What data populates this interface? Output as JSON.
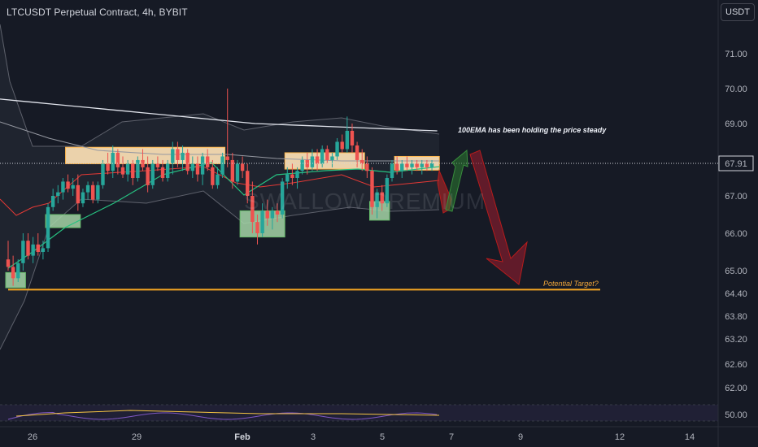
{
  "header": {
    "title": "LTCUSDT Perpetual Contract, 4h, BYBIT",
    "currency": "USDT"
  },
  "watermark": "SWALLOW PREMIUM",
  "annotations": {
    "ema_note": "100EMA has been holding the price steady",
    "target_note": "Potential Target?"
  },
  "colors": {
    "up": "#26a69a",
    "down": "#ef5350",
    "ema_fast": "#26c281",
    "ema_slow": "#e53935",
    "ema_100": "#e0e3eb",
    "resistance_box": "#fde2b6",
    "support_box": "#a5d6a7",
    "target_line": "#f5a623",
    "arrow_down": "#8b1c2c",
    "arrow_up": "#2e7d32",
    "rsi": "#7e57c2"
  },
  "chart_data": {
    "type": "candlestick",
    "symbol": "LTCUSDT",
    "interval": "4h",
    "exchange": "BYBIT",
    "price_axis": {
      "ticks": [
        "71.00",
        "70.00",
        "69.00",
        "67.00",
        "66.00",
        "65.00",
        "64.40",
        "63.80",
        "63.20",
        "62.60",
        "62.00"
      ],
      "last_price": "67.91"
    },
    "rsi_axis": {
      "ticks": [
        "50.00"
      ]
    },
    "time_axis": {
      "ticks": [
        "26",
        "29",
        "Feb",
        "3",
        "5",
        "7",
        "9",
        "12",
        "14"
      ],
      "bold": [
        "Feb"
      ]
    },
    "target_price": 64.5,
    "candles": [
      [
        65.3,
        65.8,
        65.0,
        65.1
      ],
      [
        65.1,
        65.4,
        64.6,
        64.8
      ],
      [
        64.8,
        65.3,
        64.7,
        65.2
      ],
      [
        65.2,
        66.0,
        65.0,
        65.8
      ],
      [
        65.8,
        66.0,
        65.3,
        65.4
      ],
      [
        65.4,
        65.9,
        65.2,
        65.7
      ],
      [
        65.7,
        66.0,
        65.4,
        65.5
      ],
      [
        65.5,
        65.8,
        65.3,
        65.6
      ],
      [
        65.6,
        66.8,
        65.5,
        66.7
      ],
      [
        66.7,
        67.2,
        66.6,
        67.0
      ],
      [
        67.0,
        67.3,
        66.8,
        67.1
      ],
      [
        67.1,
        67.5,
        66.9,
        67.4
      ],
      [
        67.4,
        67.6,
        67.1,
        67.2
      ],
      [
        67.2,
        67.5,
        67.0,
        67.3
      ],
      [
        67.3,
        67.6,
        66.6,
        66.8
      ],
      [
        66.8,
        67.2,
        66.7,
        67.1
      ],
      [
        67.1,
        67.4,
        66.9,
        67.3
      ],
      [
        67.3,
        67.4,
        66.8,
        66.9
      ],
      [
        66.9,
        67.4,
        66.8,
        67.3
      ],
      [
        67.3,
        68.0,
        67.2,
        67.9
      ],
      [
        67.9,
        68.2,
        67.6,
        67.7
      ],
      [
        67.7,
        68.4,
        67.5,
        68.2
      ],
      [
        68.2,
        68.3,
        67.6,
        67.8
      ],
      [
        67.8,
        68.1,
        67.5,
        67.6
      ],
      [
        67.6,
        68.0,
        67.4,
        67.9
      ],
      [
        67.9,
        68.0,
        67.3,
        67.5
      ],
      [
        67.5,
        68.1,
        67.4,
        68.0
      ],
      [
        68.0,
        68.3,
        67.7,
        67.8
      ],
      [
        67.8,
        68.1,
        67.1,
        67.3
      ],
      [
        67.3,
        68.0,
        67.2,
        67.9
      ],
      [
        67.9,
        68.1,
        67.7,
        67.8
      ],
      [
        67.8,
        68.0,
        67.4,
        67.5
      ],
      [
        67.5,
        68.0,
        67.4,
        67.9
      ],
      [
        67.9,
        68.5,
        67.6,
        68.3
      ],
      [
        68.3,
        68.5,
        67.8,
        68.0
      ],
      [
        68.0,
        68.4,
        67.7,
        68.2
      ],
      [
        68.2,
        68.3,
        67.6,
        67.7
      ],
      [
        67.7,
        68.1,
        67.5,
        67.9
      ],
      [
        67.9,
        68.1,
        67.4,
        67.6
      ],
      [
        67.6,
        68.2,
        67.3,
        68.1
      ],
      [
        68.1,
        68.3,
        67.7,
        67.8
      ],
      [
        67.8,
        68.0,
        67.2,
        67.3
      ],
      [
        67.3,
        67.8,
        67.2,
        67.6
      ],
      [
        67.6,
        68.2,
        67.5,
        68.1
      ],
      [
        68.1,
        70.0,
        67.8,
        68.0
      ],
      [
        68.0,
        68.2,
        67.2,
        67.4
      ],
      [
        67.4,
        68.0,
        67.3,
        67.9
      ],
      [
        67.9,
        68.1,
        67.5,
        67.7
      ],
      [
        67.7,
        67.9,
        66.8,
        67.0
      ],
      [
        67.0,
        67.4,
        66.0,
        66.3
      ],
      [
        66.3,
        66.5,
        65.7,
        66.0
      ],
      [
        66.0,
        66.8,
        65.9,
        66.6
      ],
      [
        66.6,
        66.9,
        66.2,
        66.4
      ],
      [
        66.4,
        66.7,
        66.1,
        66.6
      ],
      [
        66.6,
        66.8,
        66.3,
        66.5
      ],
      [
        66.5,
        67.5,
        66.4,
        67.4
      ],
      [
        67.4,
        67.8,
        67.2,
        67.6
      ],
      [
        67.6,
        67.9,
        67.3,
        67.5
      ],
      [
        67.5,
        67.8,
        67.2,
        67.7
      ],
      [
        67.7,
        68.1,
        67.6,
        68.0
      ],
      [
        68.0,
        68.2,
        67.6,
        67.8
      ],
      [
        67.8,
        68.3,
        67.7,
        68.1
      ],
      [
        68.1,
        68.3,
        67.7,
        67.9
      ],
      [
        67.9,
        68.4,
        67.8,
        68.3
      ],
      [
        68.3,
        68.4,
        67.9,
        68.0
      ],
      [
        68.0,
        68.2,
        67.8,
        68.1
      ],
      [
        68.1,
        68.6,
        68.0,
        68.5
      ],
      [
        68.5,
        68.7,
        68.2,
        68.3
      ],
      [
        68.3,
        69.2,
        68.2,
        68.8
      ],
      [
        68.8,
        69.0,
        68.2,
        68.4
      ],
      [
        68.4,
        68.5,
        67.8,
        68.0
      ],
      [
        68.0,
        68.3,
        67.7,
        67.9
      ],
      [
        67.9,
        68.1,
        67.5,
        67.7
      ],
      [
        67.7,
        67.8,
        66.5,
        66.7
      ],
      [
        66.7,
        67.2,
        66.4,
        67.1
      ],
      [
        67.1,
        67.3,
        66.6,
        66.8
      ],
      [
        66.8,
        67.6,
        66.7,
        67.5
      ],
      [
        67.5,
        68.0,
        67.4,
        67.9
      ],
      [
        67.9,
        68.1,
        67.6,
        67.7
      ],
      [
        67.7,
        68.0,
        67.5,
        67.9
      ],
      [
        67.9,
        68.1,
        67.7,
        67.8
      ],
      [
        67.8,
        68.0,
        67.6,
        67.9
      ],
      [
        67.9,
        68.0,
        67.7,
        67.8
      ],
      [
        67.8,
        68.0,
        67.6,
        67.9
      ],
      [
        67.9,
        68.0,
        67.7,
        67.8
      ],
      [
        67.8,
        68.0,
        67.7,
        67.91
      ]
    ],
    "ema_100": [
      69.7,
      69.65,
      69.6,
      69.55,
      69.5,
      69.45,
      69.4,
      69.35,
      69.3,
      69.25,
      69.2,
      69.15,
      69.1,
      69.05,
      69.0,
      68.98,
      68.96,
      68.94,
      68.92,
      68.9,
      68.88,
      68.86,
      68.84,
      68.82,
      68.8
    ],
    "boxes": [
      {
        "kind": "support",
        "from": 0,
        "to": 3,
        "low": 64.55,
        "high": 64.95
      },
      {
        "kind": "support",
        "from": 8,
        "to": 14,
        "low": 66.15,
        "high": 66.5
      },
      {
        "kind": "resistance",
        "from": 12,
        "to": 43,
        "low": 67.9,
        "high": 68.35
      },
      {
        "kind": "support",
        "from": 47,
        "to": 55,
        "low": 65.9,
        "high": 66.6
      },
      {
        "kind": "resistance",
        "from": 56,
        "to": 71,
        "low": 67.75,
        "high": 68.2
      },
      {
        "kind": "support",
        "from": 73,
        "to": 76,
        "low": 66.35,
        "high": 66.85
      },
      {
        "kind": "resistance",
        "from": 78,
        "to": 86,
        "low": 67.72,
        "high": 68.1
      }
    ]
  }
}
